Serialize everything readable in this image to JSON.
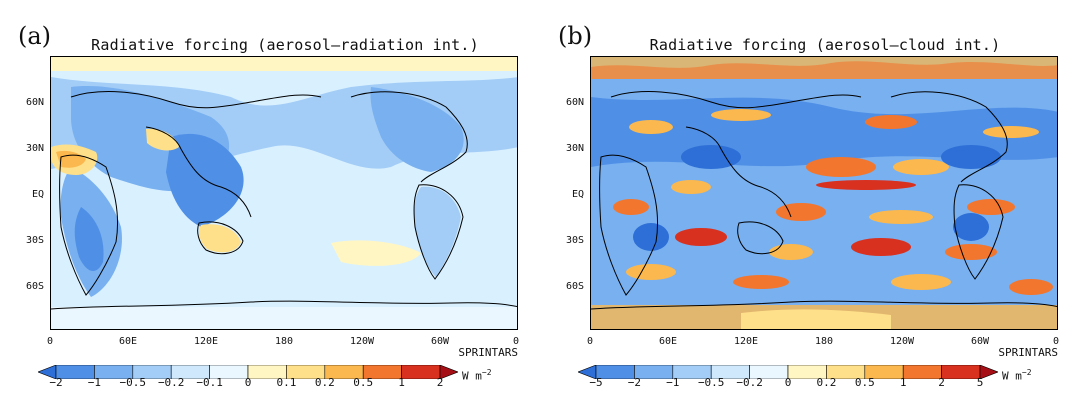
{
  "panels": [
    {
      "letter": "(a)",
      "title": "Radiative forcing (aerosol–radiation int.)",
      "lat_labels": [
        "60N",
        "30N",
        "EQ",
        "30S",
        "60S"
      ],
      "lon_labels": [
        "0",
        "60E",
        "120E",
        "180",
        "120W",
        "60W",
        "0"
      ],
      "source": "SPRINTARS",
      "colorbar": {
        "ticks": [
          "−2",
          "−1",
          "−0.5",
          "−0.2",
          "−0.1",
          "0",
          "0.1",
          "0.2",
          "0.5",
          "1",
          "2"
        ],
        "unit": "W m",
        "unit_exp": "−2",
        "colors": [
          "#2d6fd6",
          "#4f8fe6",
          "#78b0f0",
          "#a3cdf6",
          "#cfe8fb",
          "#eaf7ff",
          "#fff6c4",
          "#ffe08a",
          "#fbb84e",
          "#f2762e",
          "#d9311f",
          "#a50f15"
        ]
      },
      "background_color": "#d9f0ff"
    },
    {
      "letter": "(b)",
      "title": "Radiative forcing (aerosol–cloud int.)",
      "lat_labels": [
        "60N",
        "30N",
        "EQ",
        "30S",
        "60S"
      ],
      "lon_labels": [
        "0",
        "60E",
        "120E",
        "180",
        "120W",
        "60W",
        "0"
      ],
      "source": "SPRINTARS",
      "colorbar": {
        "ticks": [
          "−5",
          "−2",
          "−1",
          "−0.5",
          "−0.2",
          "0",
          "0.2",
          "0.5",
          "1",
          "2",
          "5"
        ],
        "unit": "W m",
        "unit_exp": "−2",
        "colors": [
          "#2d6fd6",
          "#4f8fe6",
          "#78b0f0",
          "#a3cdf6",
          "#cfe8fb",
          "#eaf7ff",
          "#fff6c4",
          "#ffe08a",
          "#fbb84e",
          "#f2762e",
          "#d9311f",
          "#a50f15"
        ]
      },
      "background_color": "#7fb3ee"
    }
  ]
}
